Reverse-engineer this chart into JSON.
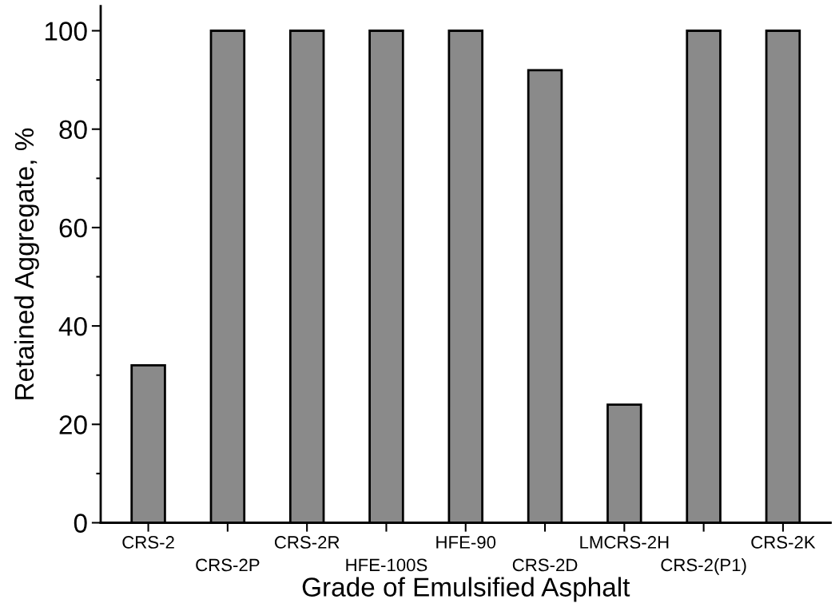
{
  "chart_data": {
    "type": "bar",
    "xlabel": "Grade of Emulsified Asphalt",
    "ylabel": "Retained Aggregate, %",
    "categories": [
      "CRS-2",
      "CRS-2P",
      "CRS-2R",
      "HFE-100S",
      "HFE-90",
      "CRS-2D",
      "LMCRS-2H",
      "CRS-2(P1)",
      "CRS-2K"
    ],
    "values": [
      32,
      100,
      100,
      100,
      100,
      92,
      24,
      100,
      100
    ],
    "color": "#8a8a8a",
    "ylim": [
      0,
      105
    ],
    "yticks": [
      0,
      20,
      40,
      60,
      80,
      100
    ],
    "grid": false,
    "legend": false
  }
}
